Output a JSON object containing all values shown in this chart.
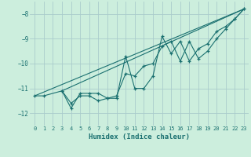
{
  "xlabel": "Humidex (Indice chaleur)",
  "background_color": "#cceedd",
  "grid_color": "#aacccc",
  "line_color": "#1a7070",
  "xlim": [
    -0.5,
    23.5
  ],
  "ylim": [
    -12.5,
    -7.5
  ],
  "yticks": [
    -12,
    -11,
    -10,
    -9,
    -8
  ],
  "xticks": [
    0,
    1,
    2,
    3,
    4,
    5,
    6,
    7,
    8,
    9,
    10,
    11,
    12,
    13,
    14,
    15,
    16,
    17,
    18,
    19,
    20,
    21,
    22,
    23
  ],
  "line1": {
    "x": [
      0,
      1,
      3,
      4,
      5,
      6,
      7,
      8,
      9,
      10,
      11,
      12,
      13,
      14,
      15,
      16,
      17,
      18,
      19,
      20,
      21,
      22,
      23
    ],
    "y": [
      -11.3,
      -11.3,
      -11.1,
      -11.6,
      -11.3,
      -11.3,
      -11.5,
      -11.4,
      -11.4,
      -9.7,
      -11.0,
      -11.0,
      -10.5,
      -8.9,
      -9.6,
      -9.1,
      -9.9,
      -9.4,
      -9.2,
      -8.7,
      -8.5,
      -8.2,
      -7.8
    ]
  },
  "line2": {
    "x": [
      3,
      4,
      5,
      6,
      7,
      8,
      9,
      10,
      11,
      12,
      13,
      14,
      15,
      16,
      17,
      18,
      19,
      20,
      21,
      22,
      23
    ],
    "y": [
      -11.1,
      -11.8,
      -11.2,
      -11.2,
      -11.2,
      -11.4,
      -11.3,
      -10.4,
      -10.5,
      -10.1,
      -10.0,
      -9.3,
      -9.1,
      -9.9,
      -9.1,
      -9.8,
      -9.5,
      -9.0,
      -8.6,
      -8.2,
      -7.8
    ]
  },
  "trend1": {
    "x": [
      0,
      23
    ],
    "y": [
      -11.3,
      -7.8
    ]
  },
  "trend2": {
    "x": [
      3,
      23
    ],
    "y": [
      -11.1,
      -7.8
    ]
  }
}
